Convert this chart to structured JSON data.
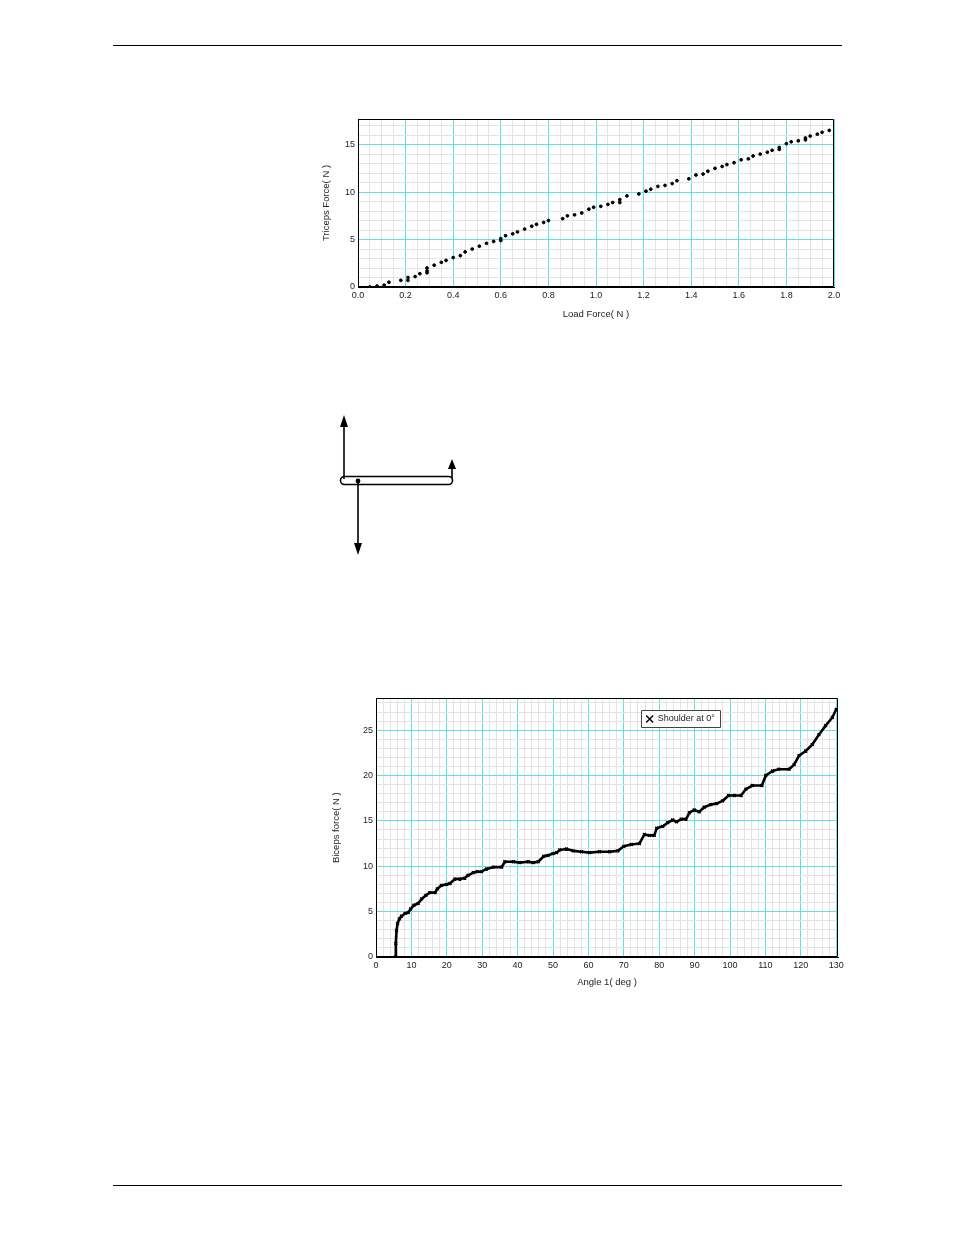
{
  "chart_data": [
    {
      "type": "scatter",
      "xlabel": "Load Force( N )",
      "ylabel": "Triceps Force( N )",
      "x": [
        0.05,
        0.08,
        0.11,
        0.13,
        0.18,
        0.21,
        0.21,
        0.24,
        0.26,
        0.29,
        0.29,
        0.29,
        0.32,
        0.35,
        0.37,
        0.4,
        0.43,
        0.45,
        0.48,
        0.51,
        0.54,
        0.57,
        0.6,
        0.6,
        0.62,
        0.65,
        0.67,
        0.7,
        0.73,
        0.75,
        0.78,
        0.8,
        0.86,
        0.88,
        0.91,
        0.94,
        0.97,
        0.99,
        1.02,
        1.05,
        1.07,
        1.1,
        1.1,
        1.13,
        1.18,
        1.21,
        1.23,
        1.26,
        1.29,
        1.32,
        1.34,
        1.39,
        1.42,
        1.45,
        1.47,
        1.5,
        1.53,
        1.55,
        1.58,
        1.61,
        1.64,
        1.66,
        1.69,
        1.72,
        1.74,
        1.77,
        1.77,
        1.8,
        1.82,
        1.85,
        1.88,
        1.88,
        1.9,
        1.93,
        1.95,
        1.98
      ],
      "values": [
        0,
        0.1,
        0.2,
        0.5,
        0.7,
        1.0,
        0.7,
        1.1,
        1.4,
        1.7,
        1.5,
        2.0,
        2.3,
        2.6,
        2.8,
        3.1,
        3.3,
        3.7,
        4.0,
        4.3,
        4.6,
        4.8,
        5.1,
        4.9,
        5.4,
        5.6,
        5.8,
        6.1,
        6.4,
        6.6,
        6.8,
        7.0,
        7.2,
        7.5,
        7.6,
        7.8,
        8.2,
        8.4,
        8.5,
        8.7,
        8.9,
        9.2,
        8.9,
        9.6,
        9.8,
        10.1,
        10.3,
        10.6,
        10.7,
        10.9,
        11.2,
        11.4,
        11.8,
        11.9,
        12.2,
        12.5,
        12.7,
        12.9,
        13.1,
        13.4,
        13.5,
        13.8,
        14.0,
        14.2,
        14.4,
        14.7,
        14.5,
        15.1,
        15.3,
        15.4,
        15.7,
        15.5,
        15.9,
        16.1,
        16.3,
        16.5
      ],
      "color": "#000000",
      "marker": "circle",
      "xlim": [
        0,
        2.0
      ],
      "ylim": [
        0,
        17.7
      ],
      "xticks": [
        {
          "value": 0,
          "label": "0.0"
        },
        {
          "value": 0.05,
          "label": null
        },
        {
          "value": 0.1,
          "label": null
        },
        {
          "value": 0.15,
          "label": null
        },
        0.2,
        {
          "value": 0.25,
          "label": null
        },
        {
          "value": 0.3,
          "label": null
        },
        {
          "value": 0.35,
          "label": null
        },
        0.4,
        {
          "value": 0.45,
          "label": null
        },
        {
          "value": 0.5,
          "label": null
        },
        {
          "value": 0.55,
          "label": null
        },
        0.6,
        {
          "value": 0.65,
          "label": null
        },
        {
          "value": 0.7,
          "label": null
        },
        {
          "value": 0.75,
          "label": null
        },
        0.8,
        {
          "value": 0.85,
          "label": null
        },
        {
          "value": 0.9,
          "label": null
        },
        {
          "value": 0.95,
          "label": null
        },
        {
          "value": 1,
          "label": "1.0"
        },
        {
          "value": 1.05,
          "label": null
        },
        {
          "value": 1.1,
          "label": null
        },
        {
          "value": 1.15,
          "label": null
        },
        1.2,
        {
          "value": 1.25,
          "label": null
        },
        {
          "value": 1.3,
          "label": null
        },
        {
          "value": 1.35,
          "label": null
        },
        1.4,
        {
          "value": 1.45,
          "label": null
        },
        {
          "value": 1.5,
          "label": null
        },
        {
          "value": 1.55,
          "label": null
        },
        1.6,
        {
          "value": 1.65,
          "label": null
        },
        {
          "value": 1.7,
          "label": null
        },
        {
          "value": 1.75,
          "label": null
        },
        1.8,
        {
          "value": 1.85,
          "label": null
        },
        {
          "value": 1.9,
          "label": null
        },
        {
          "value": 1.95,
          "label": null
        },
        {
          "value": 2,
          "label": "2.0"
        }
      ],
      "yticks": [
        0,
        {
          "value": 1,
          "label": null
        },
        {
          "value": 2,
          "label": null
        },
        {
          "value": 3,
          "label": null
        },
        {
          "value": 4,
          "label": null
        },
        5,
        {
          "value": 6,
          "label": null
        },
        {
          "value": 7,
          "label": null
        },
        {
          "value": 8,
          "label": null
        },
        {
          "value": 9,
          "label": null
        },
        10,
        {
          "value": 11,
          "label": null
        },
        {
          "value": 12,
          "label": null
        },
        {
          "value": 13,
          "label": null
        },
        {
          "value": 14,
          "label": null
        },
        15,
        {
          "value": 16,
          "label": null
        },
        {
          "value": 17,
          "label": null
        }
      ],
      "grid": true
    },
    {
      "type": "line",
      "xlabel": "Angle 1( deg )",
      "ylabel": "Biceps force( N )",
      "series": [
        {
          "name": "Shoulder at 0°",
          "color": "#000000",
          "x": [
            5.5,
            5.6,
            5.8,
            6.1,
            6.6,
            7.2,
            8.2,
            9.1,
            9.8,
            10.7,
            11.9,
            12.9,
            14.1,
            15.2,
            16.7,
            17.3,
            18.5,
            19.9,
            20.9,
            22.3,
            23.7,
            25.1,
            26.0,
            27.5,
            28.6,
            29.8,
            31.2,
            33.1,
            35.5,
            36.4,
            38.8,
            40.6,
            43.0,
            44.4,
            45.8,
            47.4,
            48.6,
            50.0,
            51.0,
            51.9,
            53.8,
            55.7,
            58.0,
            60.3,
            63.1,
            66.0,
            68.3,
            70.0,
            72.1,
            74.4,
            75.8,
            77.2,
            78.6,
            79.3,
            81.0,
            82.4,
            83.8,
            84.9,
            86.2,
            87.6,
            88.5,
            89.9,
            91.3,
            92.7,
            94.6,
            96.2,
            97.9,
            99.6,
            101.2,
            103.1,
            104.5,
            106.3,
            109.0,
            110.1,
            112.0,
            113.8,
            116.7,
            118.1,
            119.5,
            121.4,
            123.2,
            125.1,
            127.0,
            128.9,
            130.0
          ],
          "values": [
            0,
            1.5,
            2.9,
            3.7,
            4.2,
            4.5,
            4.8,
            4.9,
            5.3,
            5.7,
            5.9,
            6.4,
            6.8,
            7.1,
            7.1,
            7.5,
            7.9,
            8.0,
            8.1,
            8.6,
            8.6,
            8.7,
            9.0,
            9.3,
            9.4,
            9.4,
            9.7,
            9.9,
            9.9,
            10.5,
            10.5,
            10.4,
            10.5,
            10.4,
            10.5,
            11.1,
            11.2,
            11.4,
            11.5,
            11.8,
            11.9,
            11.7,
            11.6,
            11.5,
            11.6,
            11.6,
            11.7,
            12.2,
            12.4,
            12.5,
            13.5,
            13.4,
            13.4,
            14.2,
            14.4,
            14.8,
            15.1,
            14.9,
            15.2,
            15.2,
            15.9,
            16.2,
            16.0,
            16.5,
            16.8,
            16.9,
            17.2,
            17.8,
            17.8,
            17.8,
            18.5,
            18.9,
            18.9,
            20.0,
            20.5,
            20.7,
            20.7,
            21.2,
            22.2,
            22.7,
            23.4,
            24.5,
            25.5,
            26.4,
            27.3
          ]
        }
      ],
      "marker": "cross",
      "legend": "top right",
      "xlim": [
        0,
        130.5
      ],
      "ylim": [
        0,
        28.5
      ],
      "xticks": [
        0,
        {
          "value": 2,
          "label": null
        },
        {
          "value": 4,
          "label": null
        },
        {
          "value": 6,
          "label": null
        },
        {
          "value": 8,
          "label": null
        },
        10,
        {
          "value": 12,
          "label": null
        },
        {
          "value": 14,
          "label": null
        },
        {
          "value": 16,
          "label": null
        },
        {
          "value": 18,
          "label": null
        },
        20,
        {
          "value": 22,
          "label": null
        },
        {
          "value": 24,
          "label": null
        },
        {
          "value": 26,
          "label": null
        },
        {
          "value": 28,
          "label": null
        },
        30,
        {
          "value": 32,
          "label": null
        },
        {
          "value": 34,
          "label": null
        },
        {
          "value": 36,
          "label": null
        },
        {
          "value": 38,
          "label": null
        },
        40,
        {
          "value": 42,
          "label": null
        },
        {
          "value": 44,
          "label": null
        },
        {
          "value": 46,
          "label": null
        },
        {
          "value": 48,
          "label": null
        },
        50,
        {
          "value": 52,
          "label": null
        },
        {
          "value": 54,
          "label": null
        },
        {
          "value": 56,
          "label": null
        },
        {
          "value": 58,
          "label": null
        },
        60,
        {
          "value": 62,
          "label": null
        },
        {
          "value": 64,
          "label": null
        },
        {
          "value": 66,
          "label": null
        },
        {
          "value": 68,
          "label": null
        },
        70,
        {
          "value": 72,
          "label": null
        },
        {
          "value": 74,
          "label": null
        },
        {
          "value": 76,
          "label": null
        },
        {
          "value": 78,
          "label": null
        },
        80,
        {
          "value": 82,
          "label": null
        },
        {
          "value": 84,
          "label": null
        },
        {
          "value": 86,
          "label": null
        },
        {
          "value": 88,
          "label": null
        },
        90,
        {
          "value": 92,
          "label": null
        },
        {
          "value": 94,
          "label": null
        },
        {
          "value": 96,
          "label": null
        },
        {
          "value": 98,
          "label": null
        },
        100,
        {
          "value": 102,
          "label": null
        },
        {
          "value": 104,
          "label": null
        },
        {
          "value": 106,
          "label": null
        },
        {
          "value": 108,
          "label": null
        },
        110,
        {
          "value": 112,
          "label": null
        },
        {
          "value": 114,
          "label": null
        },
        {
          "value": 116,
          "label": null
        },
        {
          "value": 118,
          "label": null
        },
        120,
        {
          "value": 122,
          "label": null
        },
        {
          "value": 124,
          "label": null
        },
        {
          "value": 126,
          "label": null
        },
        {
          "value": 128,
          "label": null
        },
        130
      ],
      "yticks": [
        0,
        {
          "value": 1,
          "label": null
        },
        {
          "value": 2,
          "label": null
        },
        {
          "value": 3,
          "label": null
        },
        {
          "value": 4,
          "label": null
        },
        5,
        {
          "value": 6,
          "label": null
        },
        {
          "value": 7,
          "label": null
        },
        {
          "value": 8,
          "label": null
        },
        {
          "value": 9,
          "label": null
        },
        10,
        {
          "value": 11,
          "label": null
        },
        {
          "value": 12,
          "label": null
        },
        {
          "value": 13,
          "label": null
        },
        {
          "value": 14,
          "label": null
        },
        15,
        {
          "value": 16,
          "label": null
        },
        {
          "value": 17,
          "label": null
        },
        {
          "value": 18,
          "label": null
        },
        {
          "value": 19,
          "label": null
        },
        20,
        {
          "value": 21,
          "label": null
        },
        {
          "value": 22,
          "label": null
        },
        {
          "value": 23,
          "label": null
        },
        {
          "value": 24,
          "label": null
        },
        25,
        {
          "value": 26,
          "label": null
        },
        {
          "value": 27,
          "label": null
        },
        {
          "value": 28,
          "label": null
        }
      ],
      "grid": true
    }
  ]
}
